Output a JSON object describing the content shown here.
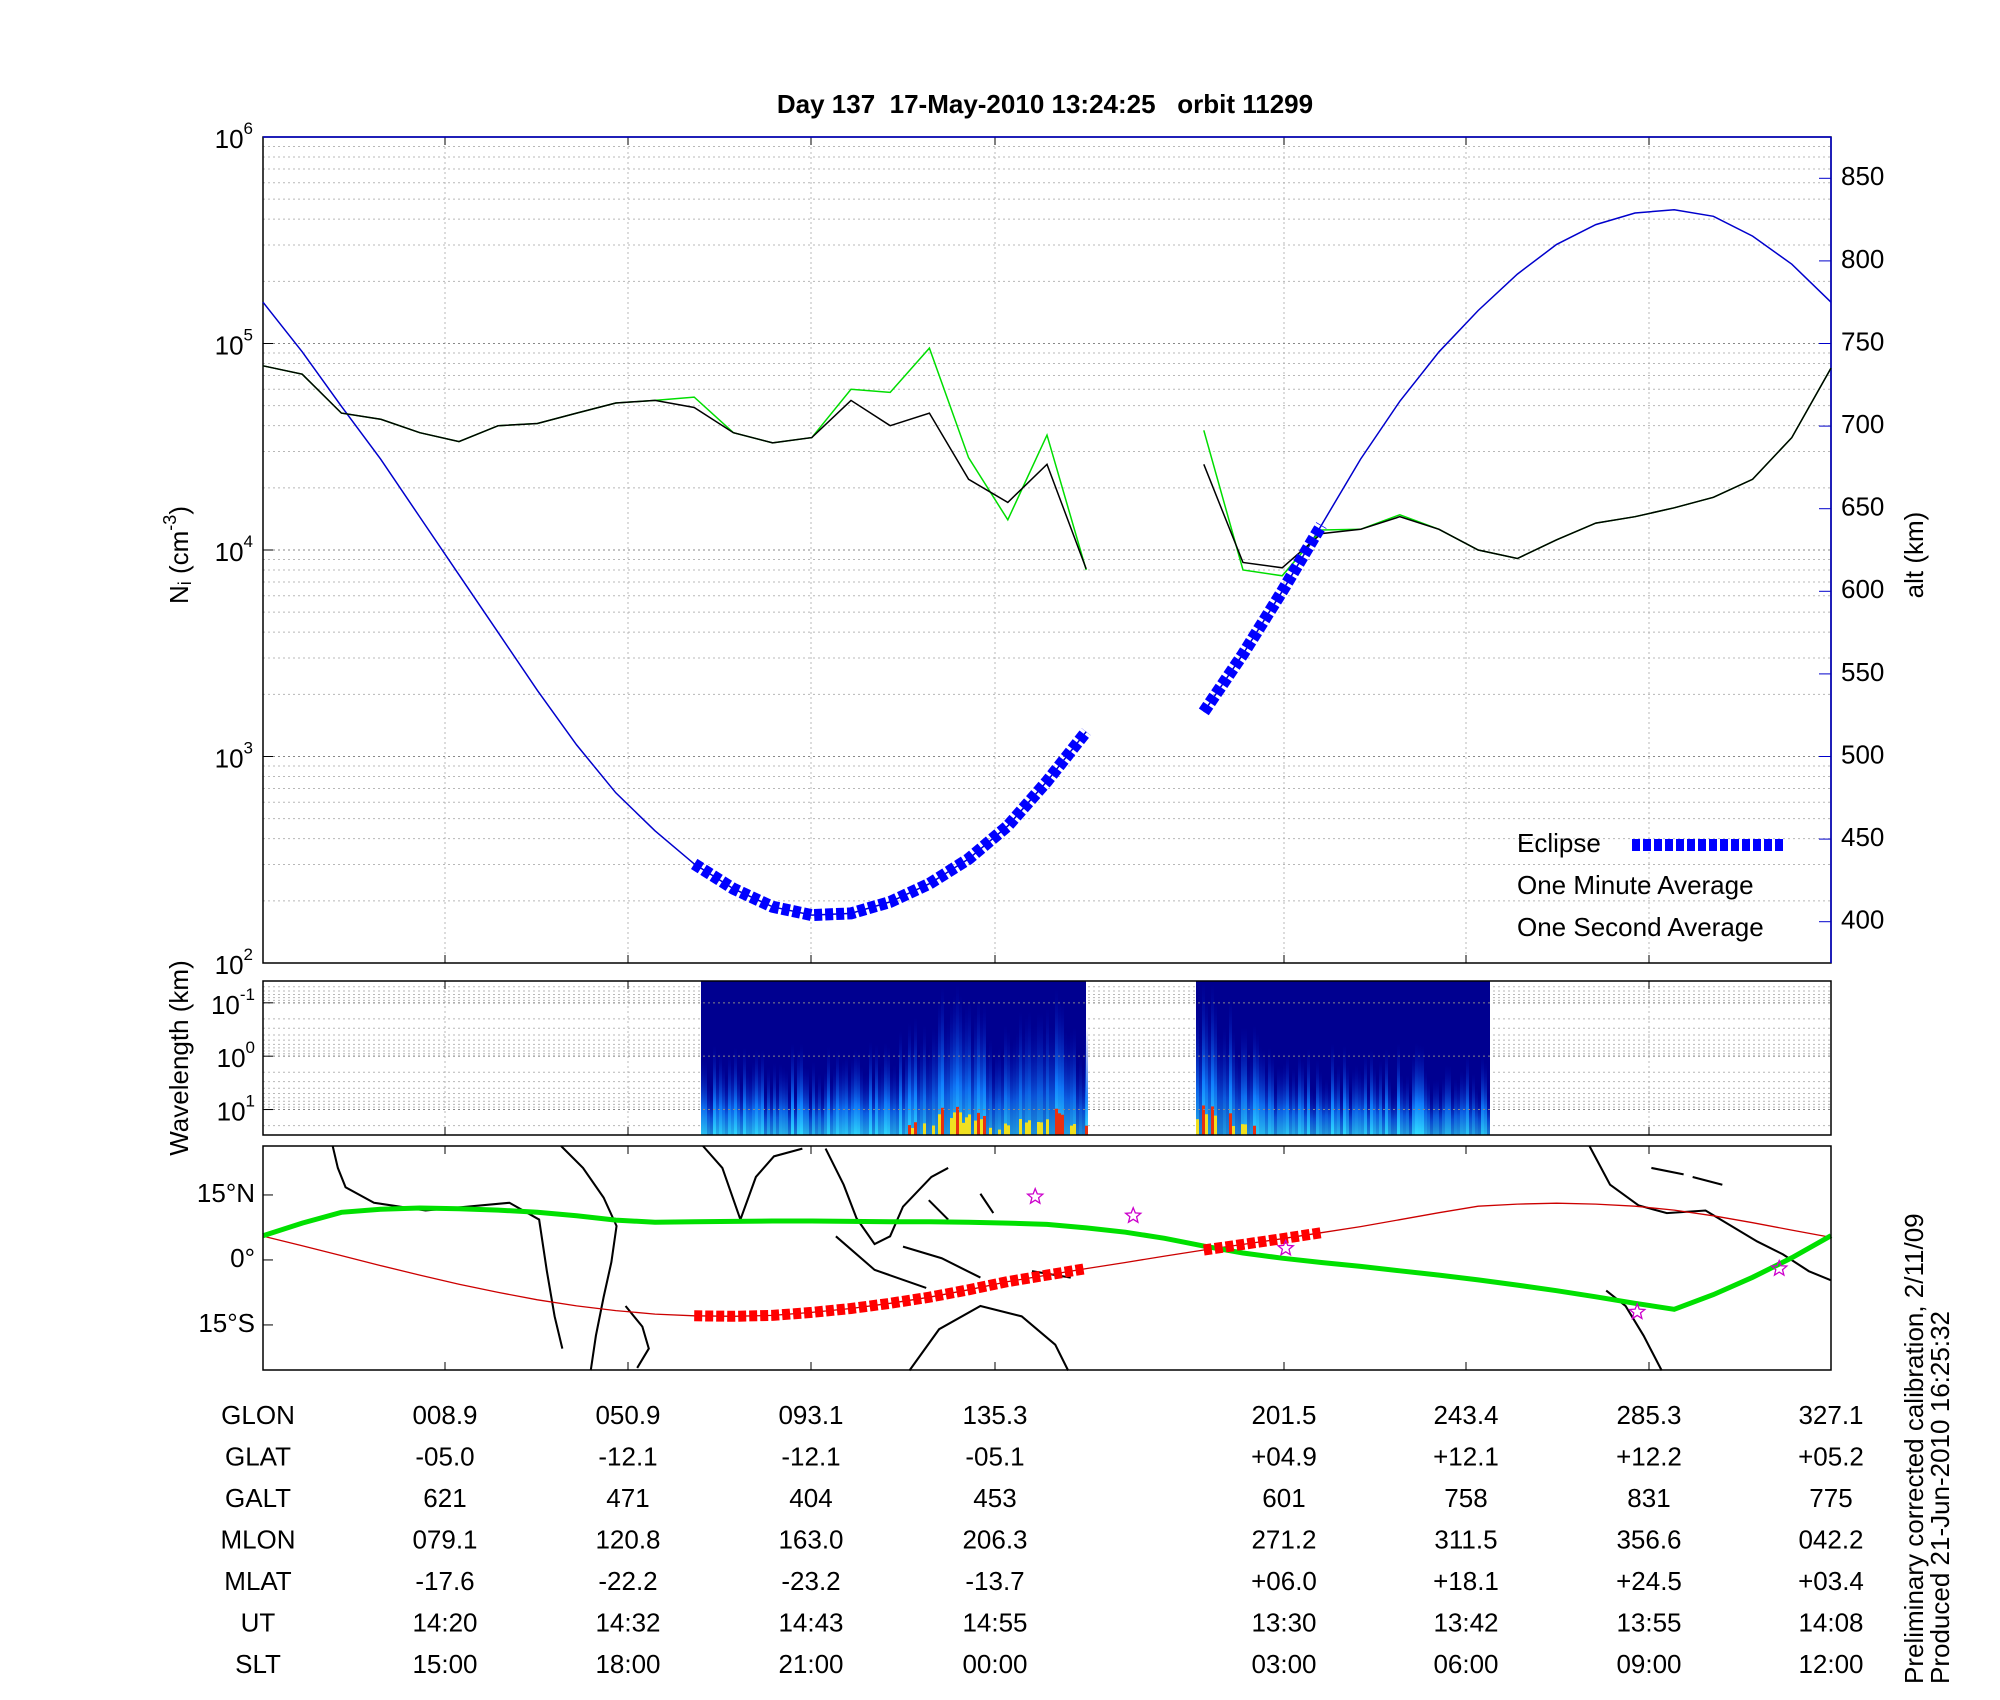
{
  "chart_data": [
    {
      "type": "line",
      "title": "Day 137  17-May-2010 13:24:25   orbit 11299",
      "ylabel": [
        "N",
        "i",
        " (cm",
        "-3",
        ")"
      ],
      "y2label": "alt (km)",
      "yscale": "log",
      "ylim": [
        100,
        1000000
      ],
      "yticks": [
        {
          "value": 100,
          "label": [
            "10",
            "2"
          ]
        },
        {
          "value": 1000,
          "label": [
            "10",
            "3"
          ]
        },
        {
          "value": 10000,
          "label": [
            "10",
            "4"
          ]
        },
        {
          "value": 100000,
          "label": [
            "10",
            "5"
          ]
        },
        {
          "value": 1000000,
          "label": [
            "10",
            "6"
          ]
        }
      ],
      "y2lim": [
        375,
        875
      ],
      "y2ticks": [
        400,
        450,
        500,
        550,
        600,
        650,
        700,
        750,
        800,
        850
      ],
      "grid": true,
      "legend": "lower right",
      "series": [
        {
          "name": "Eclipse",
          "color": "#0000ff",
          "axis": "y2",
          "values": [
            null,
            null,
            null,
            null,
            null,
            null,
            null,
            null,
            null,
            null,
            null,
            435,
            420,
            409,
            404,
            405,
            412,
            423,
            438,
            458,
            485,
            515,
            null,
            null,
            527,
            562,
            600,
            640,
            null,
            null,
            null,
            null,
            null,
            null,
            null,
            null,
            null,
            null,
            null,
            null,
            null
          ]
        },
        {
          "name": "One Minute Average",
          "color": "#000000",
          "values": [
            78000,
            71000,
            46000,
            43000,
            37000,
            33500,
            40000,
            41000,
            46000,
            51500,
            53000,
            49000,
            37000,
            33000,
            35000,
            53000,
            40000,
            46000,
            22000,
            17000,
            26000,
            8100,
            null,
            null,
            26000,
            8700,
            8200,
            12000,
            12600,
            14500,
            12600,
            10000,
            9100,
            11200,
            13500,
            14500,
            16000,
            18000,
            22000,
            35000,
            76000
          ]
        },
        {
          "name": "One Second Average",
          "color": "#00dd00",
          "values": [
            78000,
            71000,
            46000,
            43000,
            37000,
            33500,
            40000,
            41000,
            46000,
            51500,
            53000,
            55000,
            37000,
            33000,
            35000,
            60000,
            58000,
            95000,
            28000,
            14000,
            36000,
            8000,
            null,
            null,
            38000,
            8000,
            7500,
            12500,
            12600,
            14800,
            12600,
            10000,
            9100,
            11200,
            13500,
            14500,
            16000,
            18000,
            22000,
            35000,
            76000
          ]
        },
        {
          "color": "#0000cc",
          "axis": "y2",
          "values": [
            775,
            745,
            712,
            680,
            645,
            610,
            575,
            540,
            507,
            478,
            455,
            435,
            420,
            409,
            404,
            405,
            412,
            423,
            438,
            458,
            485,
            515,
            null,
            null,
            527,
            562,
            600,
            640,
            680,
            715,
            745,
            770,
            792,
            810,
            822,
            829,
            831,
            827,
            815,
            798,
            775
          ]
        }
      ]
    },
    {
      "type": "spectrogram",
      "ylabel": "Wavelength (km)",
      "yscale": "log",
      "ylim": [
        30,
        0.039
      ],
      "yticks": [
        {
          "value": 0.1,
          "label": [
            "10",
            "-1"
          ]
        },
        {
          "value": 1,
          "label": [
            "10",
            "0"
          ]
        },
        {
          "value": 10,
          "label": [
            "10",
            "1"
          ]
        }
      ],
      "grid": true
    },
    {
      "type": "map",
      "xlim": [
        -32.8,
        327.2
      ],
      "ylim": [
        -25.4,
        26.3
      ],
      "yticks": [
        {
          "value": 15,
          "label": "15°N"
        },
        {
          "value": 0,
          "label": "0°"
        },
        {
          "value": -15,
          "label": "15°S"
        }
      ],
      "x": [
        -32.8,
        -23.8,
        -14.8,
        -5.8,
        3.2,
        12.2,
        21.2,
        30.2,
        39.2,
        48.2,
        57.2,
        66.2,
        75.2,
        84.2,
        93.2,
        102.2,
        111.2,
        120.2,
        129.2,
        138.2,
        147.2,
        156.2,
        165.2,
        174.2,
        183.2,
        192.2,
        201.2,
        210.2,
        219.2,
        228.2,
        237.2,
        246.2,
        255.2,
        264.2,
        273.2,
        282.2,
        291.2,
        300.2,
        309.2,
        318.2,
        327.2
      ],
      "series": [
        {
          "color": "#cc0000",
          "values": [
            5.5,
            3.3,
            1.0,
            -1.3,
            -3.5,
            -5.6,
            -7.5,
            -9.2,
            -10.6,
            -11.7,
            -12.5,
            -12.9,
            -13.0,
            -12.8,
            -12.1,
            -11.2,
            -10.0,
            -8.6,
            -6.9,
            -5.0,
            -3.5,
            -2.0,
            -0.6,
            0.9,
            2.3,
            3.6,
            4.9,
            6.3,
            7.7,
            9.3,
            10.9,
            12.4,
            12.9,
            13.1,
            12.9,
            12.4,
            11.5,
            10.2,
            8.6,
            6.9,
            5.2
          ]
        },
        {
          "color": "#ff0000",
          "values": [
            null,
            null,
            null,
            null,
            null,
            null,
            null,
            null,
            null,
            null,
            null,
            -12.9,
            -13.0,
            -12.8,
            -12.1,
            -11.2,
            -10.0,
            -8.6,
            -6.9,
            -5.0,
            -3.5,
            -2.0,
            null,
            null,
            2.3,
            3.6,
            4.9,
            6.3,
            null,
            null,
            null,
            null,
            null,
            null,
            null,
            null,
            null,
            null,
            null,
            null,
            null
          ]
        },
        {
          "color": "#00e000",
          "values": [
            5.6,
            8.5,
            11.0,
            11.7,
            12.0,
            11.8,
            11.5,
            11.0,
            10.2,
            9.2,
            8.7,
            8.8,
            8.9,
            9.0,
            9.0,
            8.9,
            8.8,
            8.8,
            8.7,
            8.5,
            8.2,
            7.4,
            6.4,
            5.0,
            3.2,
            1.6,
            0.4,
            -0.6,
            -1.5,
            -2.5,
            -3.5,
            -4.6,
            -5.8,
            -7.1,
            -8.5,
            -10.0,
            -11.4,
            -8.0,
            -4.0,
            0.5,
            5.6
          ]
        }
      ],
      "points": {
        "color": "#cc00cc",
        "x": [
          144.5,
          167,
          202,
          282.7,
          315.3
        ],
        "values": [
          14.6,
          10.2,
          2.7,
          -12,
          -2
        ]
      }
    }
  ],
  "table": {
    "rows": [
      [
        "GLON",
        "008.9",
        "050.9",
        "093.1",
        "135.3",
        "201.5",
        "243.4",
        "285.3",
        "327.1"
      ],
      [
        "GLAT",
        "-05.0",
        "-12.1",
        "-12.1",
        "-05.1",
        "+04.9",
        "+12.1",
        "+12.2",
        "+05.2"
      ],
      [
        "GALT",
        "621",
        "471",
        "404",
        "453",
        "601",
        "758",
        "831",
        "775"
      ],
      [
        "MLON",
        "079.1",
        "120.8",
        "163.0",
        "206.3",
        "271.2",
        "311.5",
        "356.6",
        "042.2"
      ],
      [
        "MLAT",
        "-17.6",
        "-22.2",
        "-23.2",
        "-13.7",
        "+06.0",
        "+18.1",
        "+24.5",
        "+03.4"
      ],
      [
        "UT",
        "14:20",
        "14:32",
        "14:43",
        "14:55",
        "13:30",
        "13:42",
        "13:55",
        "14:08"
      ],
      [
        "SLT",
        "15:00",
        "18:00",
        "21:00",
        "00:00",
        "03:00",
        "06:00",
        "09:00",
        "12:00"
      ]
    ]
  },
  "notes": [
    "Preliminary corrected calibration, 2/11/09",
    "Produced 21-Jun-2010 16:25:32"
  ]
}
